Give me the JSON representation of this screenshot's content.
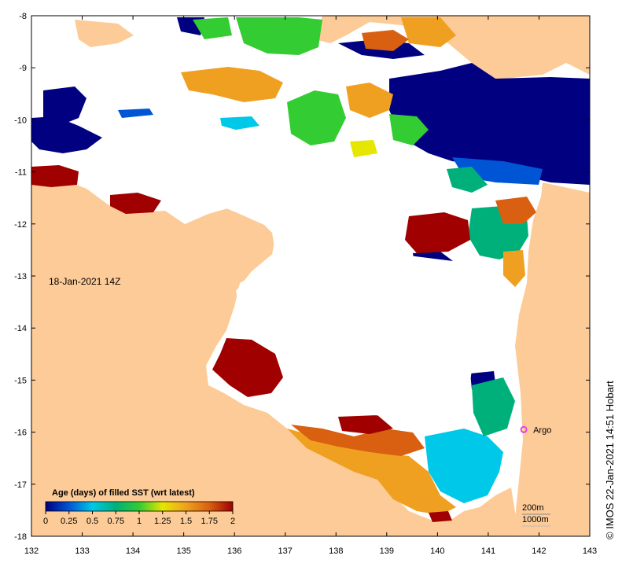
{
  "map": {
    "date_label": "18-Jan-2021 14Z",
    "credit": "© IMOS 22-Jan-2021 14:51 Hobart",
    "marker_label": "Argo",
    "contour_labels": [
      "200m",
      "1000m"
    ],
    "x_ticks": [
      "132",
      "133",
      "134",
      "135",
      "136",
      "137",
      "138",
      "139",
      "140",
      "141",
      "142",
      "143"
    ],
    "y_ticks": [
      "-8",
      "-9",
      "-10",
      "-11",
      "-12",
      "-13",
      "-14",
      "-15",
      "-16",
      "-17",
      "-18"
    ],
    "lon_range": [
      132,
      143
    ],
    "lat_range": [
      -18,
      -8
    ],
    "marker_position": {
      "lon": 141.7,
      "lat": -15.95
    },
    "colors": {
      "land": "#fccb97",
      "sea_no_data": "#ffffff",
      "marker": "#e83fe6"
    }
  },
  "legend": {
    "title": "Age (days) of filled SST (wrt latest)",
    "ticks": [
      "0",
      "0.25",
      "0.5",
      "0.75",
      "1",
      "1.25",
      "1.5",
      "1.75",
      "2"
    ],
    "range": [
      0,
      2
    ],
    "colors": [
      "#000080",
      "#0055d4",
      "#00c8e8",
      "#00b07a",
      "#33cc33",
      "#e6e600",
      "#f0a020",
      "#d86010",
      "#a00000"
    ]
  }
}
